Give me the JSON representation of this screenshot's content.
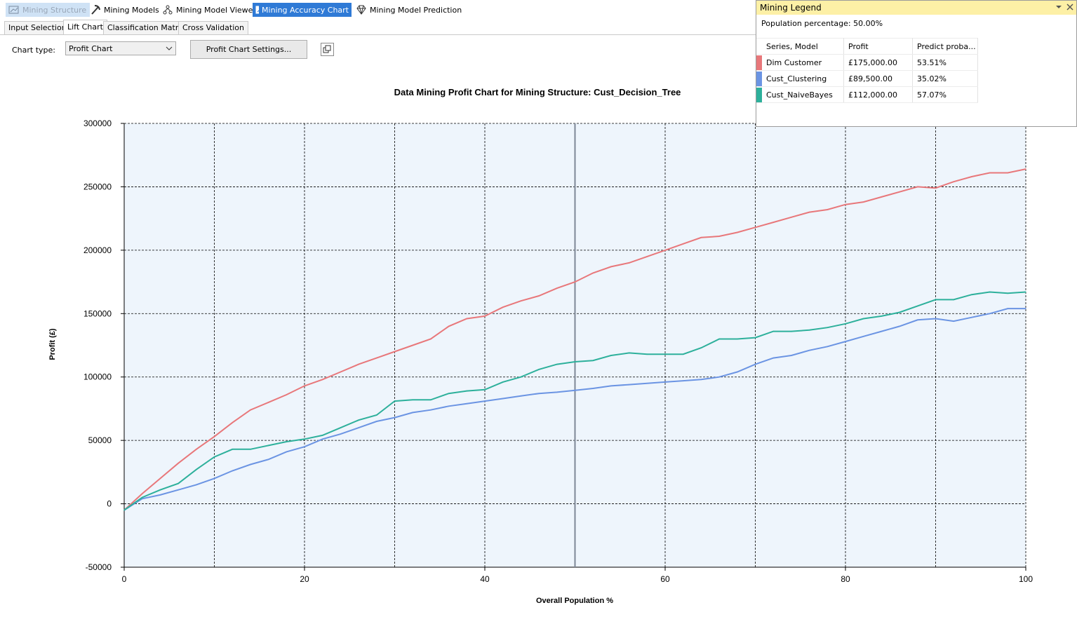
{
  "toolbar": {
    "items": [
      {
        "label": "Mining Structure",
        "icon": "mining-structure-icon"
      },
      {
        "label": "Mining Models",
        "icon": "pickaxe-icon"
      },
      {
        "label": "Mining Model Viewer",
        "icon": "model-viewer-icon"
      },
      {
        "label": "Mining Accuracy Chart",
        "icon": "accuracy-chart-icon"
      },
      {
        "label": "Mining Model Prediction",
        "icon": "prediction-gem-icon"
      }
    ]
  },
  "tabs": [
    "Input Selection",
    "Lift Chart",
    "Classification Matrix",
    "Cross Validation"
  ],
  "selected_tab": "Lift Chart",
  "controls": {
    "chart_type_label": "Chart type:",
    "chart_type_value": "Profit Chart",
    "settings_button": "Profit Chart Settings..."
  },
  "legend": {
    "title": "Mining Legend",
    "population": "Population percentage: 50.00%",
    "columns": [
      "Series, Model",
      "Profit",
      "Predict proba..."
    ],
    "rows": [
      {
        "name": "Dim Customer",
        "profit": "£175,000.00",
        "prob": "53.51%",
        "color": "#e8777a"
      },
      {
        "name": "Cust_Clustering",
        "profit": "£89,500.00",
        "prob": "35.02%",
        "color": "#6b94e3"
      },
      {
        "name": "Cust_NaiveBayes",
        "profit": "£112,000.00",
        "prob": "57.07%",
        "color": "#2db09b"
      }
    ]
  },
  "chart_data": {
    "type": "line",
    "title": "Data Mining Profit Chart for Mining Structure: Cust_Decision_Tree",
    "xlabel": "Overall Population %",
    "ylabel": "Profit (£)",
    "xlim": [
      0,
      100
    ],
    "ylim": [
      -50000,
      300000
    ],
    "x_ticks": [
      0,
      20,
      40,
      60,
      80,
      100
    ],
    "y_ticks": [
      -50000,
      0,
      50000,
      100000,
      150000,
      200000,
      250000,
      300000
    ],
    "x_gridlines": [
      0,
      10,
      20,
      30,
      40,
      50,
      60,
      70,
      80,
      90,
      100
    ],
    "grid": true,
    "population_marker": 50,
    "series": [
      {
        "name": "Dim Customer",
        "color": "#e8777a",
        "x": [
          0,
          2,
          4,
          6,
          8,
          10,
          12,
          14,
          16,
          18,
          20,
          22,
          24,
          26,
          28,
          30,
          32,
          34,
          36,
          38,
          40,
          42,
          44,
          46,
          48,
          50,
          52,
          54,
          56,
          58,
          60,
          62,
          64,
          66,
          68,
          70,
          72,
          74,
          76,
          78,
          80,
          82,
          84,
          86,
          88,
          90,
          92,
          94,
          96,
          98,
          100
        ],
        "y": [
          -5000,
          8000,
          20000,
          32000,
          43000,
          53000,
          64000,
          74000,
          80000,
          86000,
          93000,
          98000,
          104000,
          110000,
          115000,
          120000,
          125000,
          130000,
          140000,
          146000,
          148000,
          155000,
          160000,
          164000,
          170000,
          175000,
          182000,
          187000,
          190000,
          195000,
          200000,
          205000,
          210000,
          211000,
          214000,
          218000,
          222000,
          226000,
          230000,
          232000,
          236000,
          238000,
          242000,
          246000,
          250000,
          249000,
          254000,
          258000,
          261000,
          261000,
          264000
        ]
      },
      {
        "name": "Cust_Clustering",
        "color": "#6b94e3",
        "x": [
          0,
          2,
          4,
          6,
          8,
          10,
          12,
          14,
          16,
          18,
          20,
          22,
          24,
          26,
          28,
          30,
          32,
          34,
          36,
          38,
          40,
          42,
          44,
          46,
          48,
          50,
          52,
          54,
          56,
          58,
          60,
          62,
          64,
          66,
          68,
          70,
          72,
          74,
          76,
          78,
          80,
          82,
          84,
          86,
          88,
          90,
          92,
          94,
          96,
          98,
          100
        ],
        "y": [
          -5000,
          4000,
          7000,
          11000,
          15000,
          20000,
          26000,
          31000,
          35000,
          41000,
          45000,
          51000,
          55000,
          60000,
          65000,
          68000,
          72000,
          74000,
          77000,
          79000,
          81000,
          83000,
          85000,
          87000,
          88000,
          89500,
          91000,
          93000,
          94000,
          95000,
          96000,
          97000,
          98000,
          100000,
          104000,
          110000,
          115000,
          117000,
          121000,
          124000,
          128000,
          132000,
          136000,
          140000,
          145000,
          146000,
          144000,
          147000,
          150000,
          154000,
          154000
        ]
      },
      {
        "name": "Cust_NaiveBayes",
        "color": "#2db09b",
        "x": [
          0,
          2,
          4,
          6,
          8,
          10,
          12,
          14,
          16,
          18,
          20,
          22,
          24,
          26,
          28,
          30,
          32,
          34,
          36,
          38,
          40,
          42,
          44,
          46,
          48,
          50,
          52,
          54,
          56,
          58,
          60,
          62,
          64,
          66,
          68,
          70,
          72,
          74,
          76,
          78,
          80,
          82,
          84,
          86,
          88,
          90,
          92,
          94,
          96,
          98,
          100
        ],
        "y": [
          -5000,
          5000,
          11000,
          16000,
          27000,
          37000,
          43000,
          43000,
          46000,
          49000,
          51000,
          54000,
          60000,
          66000,
          70000,
          81000,
          82000,
          82000,
          87000,
          89000,
          90000,
          96000,
          100000,
          106000,
          110000,
          112000,
          113000,
          117000,
          119000,
          118000,
          118000,
          118000,
          123000,
          130000,
          130000,
          131000,
          136000,
          136000,
          137000,
          139000,
          142000,
          146000,
          148000,
          151000,
          156000,
          161000,
          161000,
          165000,
          167000,
          166000,
          167000
        ]
      }
    ]
  }
}
